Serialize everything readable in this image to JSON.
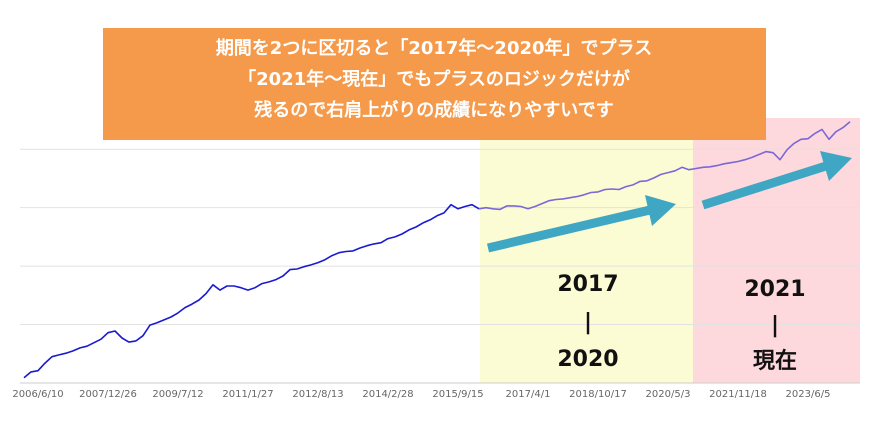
{
  "chart_data": {
    "type": "line",
    "banner": [
      "期間を2つに区切ると「2017年〜2020年」でプラス",
      "「2021年〜現在」でもプラスのロジックだけが",
      "残るので右肩上がりの成績になりやすいです"
    ],
    "region_labels": [
      [
        "2017",
        "|",
        "2020"
      ],
      [
        "2021",
        "|",
        "現在"
      ]
    ],
    "categories": [
      null,
      null,
      "2006/6/10",
      null,
      null,
      null,
      null,
      null,
      null,
      null,
      null,
      null,
      "2007/12/26",
      null,
      null,
      null,
      null,
      null,
      null,
      null,
      null,
      null,
      "2009/7/12",
      null,
      null,
      null,
      null,
      null,
      null,
      null,
      null,
      null,
      "2011/1/27",
      null,
      null,
      null,
      null,
      null,
      null,
      null,
      null,
      null,
      "2012/8/13",
      null,
      null,
      null,
      null,
      null,
      null,
      null,
      null,
      null,
      "2014/2/28",
      null,
      null,
      null,
      null,
      null,
      null,
      null,
      null,
      null,
      "2015/9/15",
      null,
      null,
      null,
      null,
      null,
      null,
      null,
      null,
      null,
      "2017/4/1",
      null,
      null,
      null,
      null,
      null,
      null,
      null,
      null,
      null,
      "2018/10/17",
      null,
      null,
      null,
      null,
      null,
      null,
      null,
      null,
      null,
      "2020/5/3",
      null,
      null,
      null,
      null,
      null,
      null,
      null,
      null,
      null,
      "2021/11/18",
      null,
      null,
      null,
      null,
      null,
      null,
      null,
      null,
      null,
      "2023/6/5",
      null,
      null,
      null,
      null,
      null,
      null
    ],
    "series": [
      {
        "color": "#1a1ad0",
        "values": [
          0.09,
          0.19,
          0.21,
          0.34,
          0.45,
          0.48,
          0.51,
          0.55,
          0.6,
          0.63,
          0.69,
          0.75,
          0.86,
          0.89,
          0.77,
          0.7,
          0.72,
          0.81,
          0.99,
          1.03,
          1.08,
          1.13,
          1.2,
          1.29,
          1.35,
          1.42,
          1.53,
          1.68,
          1.59,
          1.66,
          1.66,
          1.63,
          1.59,
          1.63,
          1.7,
          1.73,
          1.77,
          1.83,
          1.94,
          1.95,
          1.99,
          2.02,
          2.06,
          2.11,
          2.18,
          2.23,
          2.25,
          2.26,
          2.31,
          2.35,
          2.38,
          2.4,
          2.47,
          2.5,
          2.55,
          2.62,
          2.67,
          2.74,
          2.79,
          2.86,
          2.91,
          3.05,
          2.98,
          3.02,
          3.05,
          2.98,
          null,
          null,
          null,
          null,
          null,
          null,
          null,
          null,
          null,
          null,
          null,
          null,
          null,
          null,
          null,
          null,
          null,
          null,
          null,
          null,
          null,
          null,
          null,
          null,
          null,
          null,
          null,
          null,
          null,
          null,
          null,
          null,
          null,
          null,
          null,
          null,
          null,
          null,
          null,
          null,
          null,
          null,
          null,
          null,
          null,
          null,
          null,
          null,
          null,
          null,
          null,
          null,
          null
        ]
      },
      {
        "color": "#7a68d8",
        "values": [
          null,
          null,
          null,
          null,
          null,
          null,
          null,
          null,
          null,
          null,
          null,
          null,
          null,
          null,
          null,
          null,
          null,
          null,
          null,
          null,
          null,
          null,
          null,
          null,
          null,
          null,
          null,
          null,
          null,
          null,
          null,
          null,
          null,
          null,
          null,
          null,
          null,
          null,
          null,
          null,
          null,
          null,
          null,
          null,
          null,
          null,
          null,
          null,
          null,
          null,
          null,
          null,
          null,
          null,
          null,
          null,
          null,
          null,
          null,
          null,
          null,
          null,
          null,
          null,
          null,
          2.98,
          3.0,
          2.98,
          2.97,
          3.03,
          3.03,
          3.02,
          2.98,
          3.02,
          3.07,
          3.12,
          3.14,
          3.15,
          3.17,
          3.19,
          3.22,
          3.26,
          3.27,
          3.31,
          3.32,
          3.31,
          3.36,
          3.39,
          3.45,
          3.46,
          3.51,
          3.57,
          3.6,
          3.63,
          3.69,
          3.65,
          3.67,
          3.69,
          3.7,
          3.72,
          3.75,
          3.77,
          3.79,
          3.82,
          3.86,
          3.91,
          3.96,
          3.94,
          3.82,
          3.99,
          4.1,
          4.17,
          4.18,
          4.27,
          4.34,
          4.17,
          4.3,
          4.37,
          4.47
        ]
      }
    ],
    "ylim": [
      0,
      4.5
    ],
    "yticks": [
      1,
      2,
      3,
      4
    ],
    "grid": true
  }
}
